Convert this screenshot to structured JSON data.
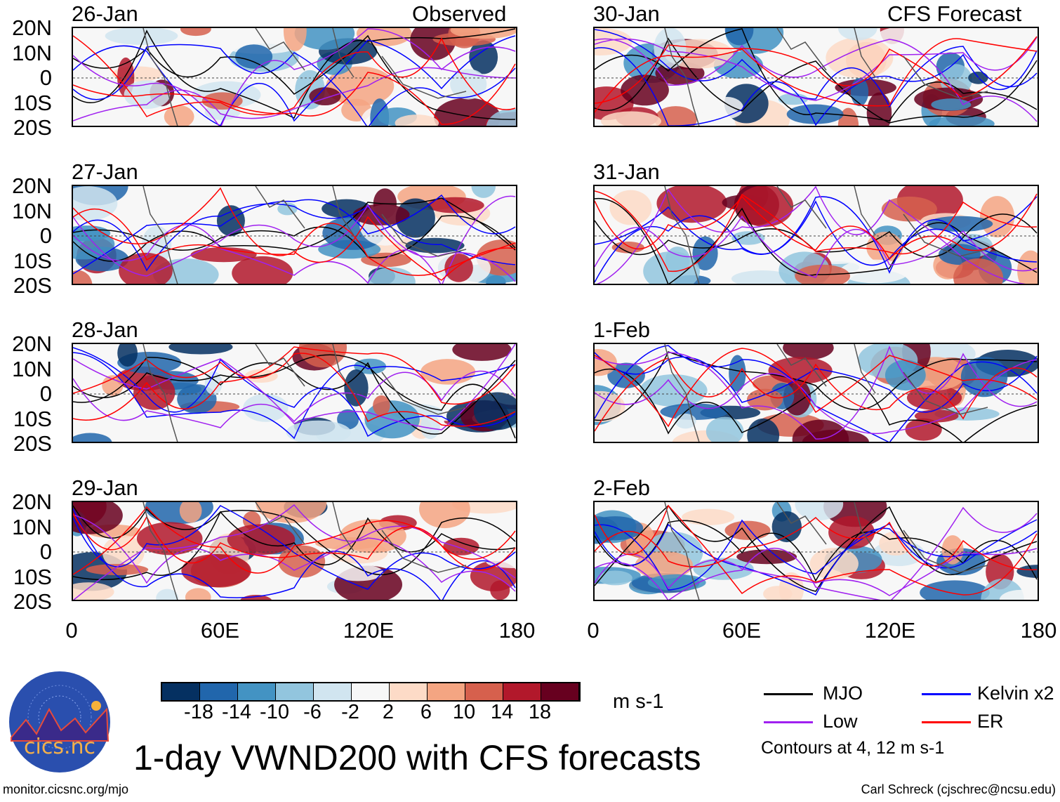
{
  "title": "1-day VWND200 with CFS forecasts",
  "left_column_label": "Observed",
  "right_column_label": "CFS Forecast",
  "panels_left": [
    "26-Jan",
    "27-Jan",
    "28-Jan",
    "29-Jan"
  ],
  "panels_right": [
    "30-Jan",
    "31-Jan",
    "1-Feb",
    "2-Feb"
  ],
  "lat_ticks": [
    "20N",
    "10N",
    "0",
    "10S",
    "20S"
  ],
  "lon_ticks": [
    "0",
    "60E",
    "120E",
    "180"
  ],
  "colorbar": {
    "colors": [
      "#053061",
      "#2166ac",
      "#4393c3",
      "#92c5de",
      "#d1e5f0",
      "#f7f7f7",
      "#fddbc7",
      "#f4a582",
      "#d6604d",
      "#b2182b",
      "#67001f"
    ],
    "labels": [
      "-18",
      "-14",
      "-10",
      "-6",
      "-2",
      "2",
      "6",
      "10",
      "14",
      "18"
    ],
    "units": "m s-1"
  },
  "legend": {
    "items": [
      {
        "label": "MJO",
        "color": "#000000"
      },
      {
        "label": "Kelvin x2",
        "color": "#0000ff"
      },
      {
        "label": "Low",
        "color": "#a020f0"
      },
      {
        "label": "ER",
        "color": "#ff0000"
      }
    ],
    "note": "Contours at 4, 12 m s-1"
  },
  "logo_text": "cics.nc",
  "logo_ring_text": "Cooperative Institute for Climate and Satellites",
  "footer_left": "monitor.cicsnc.org/mjo",
  "footer_right": "Carl Schreck (cjschrec@ncsu.edu)"
}
